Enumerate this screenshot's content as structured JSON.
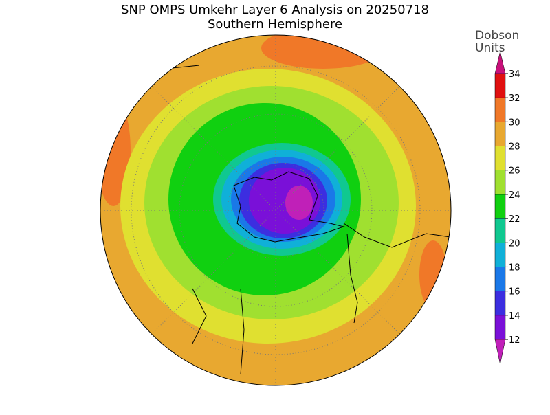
{
  "title": "SNP OMPS Umkehr Layer 6 Analysis on 20250718",
  "subtitle": "Southern Hemisphere",
  "colorbar": {
    "label_lines": [
      "Dobson",
      "Units"
    ],
    "levels": [
      12,
      14,
      16,
      18,
      20,
      22,
      24,
      26,
      28,
      30,
      32,
      34
    ],
    "colors": [
      "#7a10d8",
      "#3c2ee0",
      "#1a78e8",
      "#10b0d8",
      "#10c890",
      "#10d010",
      "#a0e030",
      "#e0e030",
      "#e8a830",
      "#f07828",
      "#e01010"
    ],
    "under_color": "#c020b8",
    "over_color": "#c8107a"
  }
}
